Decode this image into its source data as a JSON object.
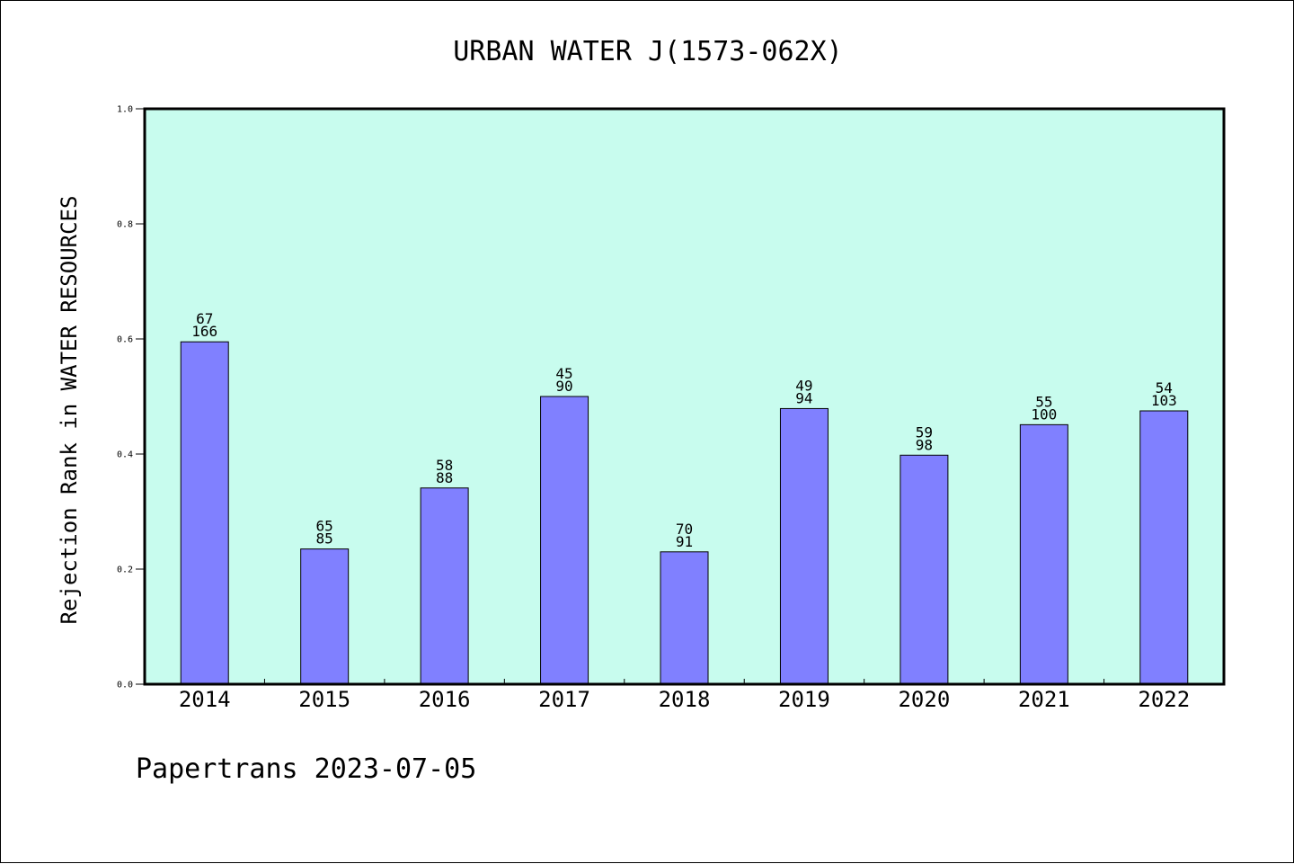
{
  "colors": {
    "plot_background": "#c8fcee",
    "bar_fill": "#8080ff",
    "bar_stroke": "#000000",
    "axis": "#000000"
  },
  "footer": "Papertrans 2023-07-05",
  "chart_data": {
    "type": "bar",
    "title": "URBAN WATER J(1573-062X)",
    "xlabel": "",
    "ylabel": "Rejection Rank in WATER RESOURCES",
    "ylim": [
      0,
      1.0
    ],
    "yticks": [
      "0.0",
      "0.2",
      "0.4",
      "0.6",
      "0.8",
      "1.0"
    ],
    "grid": false,
    "categories": [
      "2014",
      "2015",
      "2016",
      "2017",
      "2018",
      "2019",
      "2020",
      "2021",
      "2022"
    ],
    "values": [
      0.595,
      0.235,
      0.341,
      0.5,
      0.23,
      0.479,
      0.398,
      0.451,
      0.475
    ],
    "labels_top": [
      "67",
      "65",
      "58",
      "45",
      "70",
      "49",
      "59",
      "55",
      "54"
    ],
    "labels_bottom": [
      "166",
      "85",
      "88",
      "90",
      "91",
      "94",
      "98",
      "100",
      "103"
    ]
  }
}
